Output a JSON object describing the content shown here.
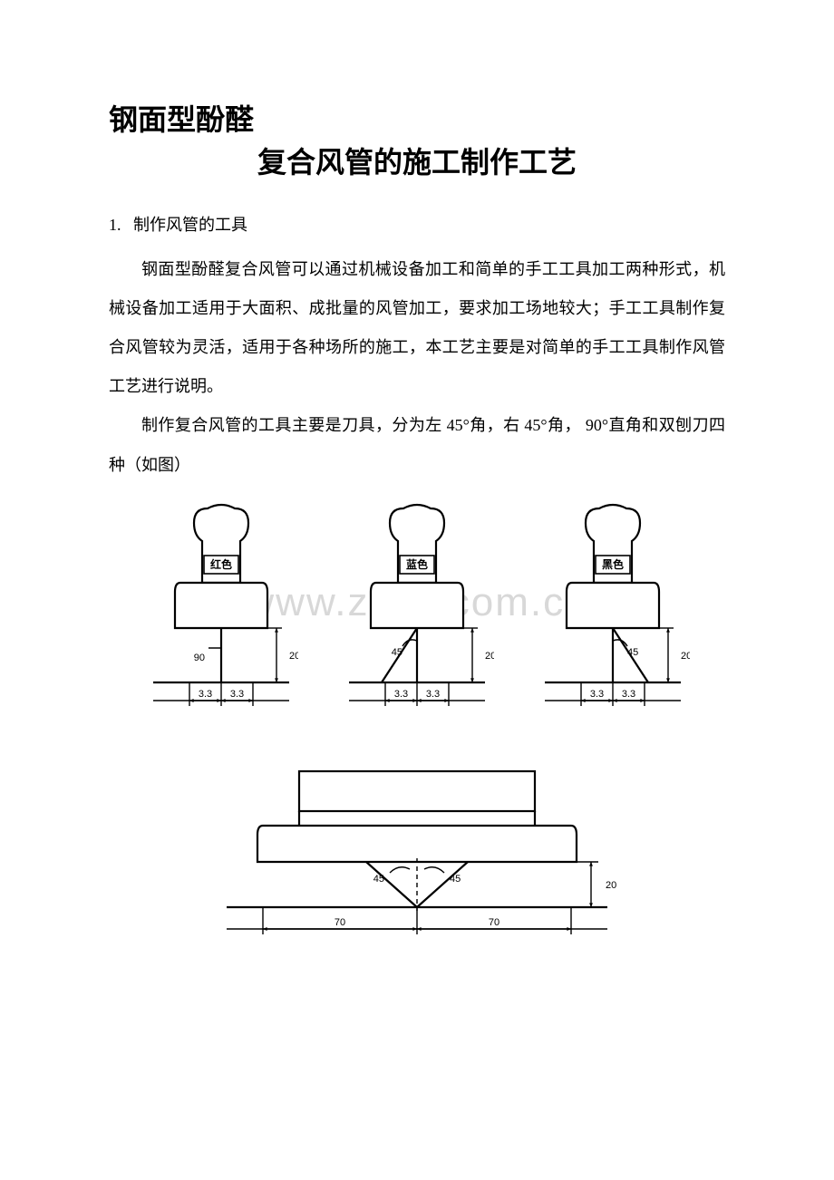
{
  "title": {
    "line1": "钢面型酚醛",
    "line2": "复合风管的施工制作工艺"
  },
  "section1": {
    "number": "1.",
    "heading": "制作风管的工具",
    "p1": "钢面型酚醛复合风管可以通过机械设备加工和简单的手工工具加工两种形式，机械设备加工适用于大面积、成批量的风管加工，要求加工场地较大；手工工具制作复合风管较为灵活，适用于各种场所的施工，本工艺主要是对简单的手工工具制作风管工艺进行说明。",
    "p2": "制作复合风管的工具主要是刀具，分为左 45°角，右 45°角， 90°直角和双刨刀四种（如图）"
  },
  "watermark": "www.zixin.com.cn",
  "tools": [
    {
      "id": "tool-90",
      "handle_label": "红色",
      "angle_label": "90",
      "side_dim": "20",
      "base_dim_left": "3.3",
      "base_dim_right": "3.3",
      "geom": "90"
    },
    {
      "id": "tool-left45",
      "handle_label": "蓝色",
      "angle_label": "45",
      "side_dim": "20",
      "base_dim_left": "3.3",
      "base_dim_right": "3.3",
      "geom": "left45"
    },
    {
      "id": "tool-right45",
      "handle_label": "黑色",
      "angle_label": "45",
      "side_dim": "20",
      "base_dim_left": "3.3",
      "base_dim_right": "3.3",
      "geom": "right45"
    }
  ],
  "double_plane": {
    "angle_left": "45",
    "angle_right": "45",
    "side_dim": "20",
    "base_left": "70",
    "base_right": "70"
  },
  "style": {
    "stroke": "#000000",
    "stroke_w": 2.2,
    "stroke_thin": 1.4,
    "fill": "#ffffff",
    "label_font": "12px SimSun, serif",
    "dim_font": "11px Arial, sans-serif"
  }
}
